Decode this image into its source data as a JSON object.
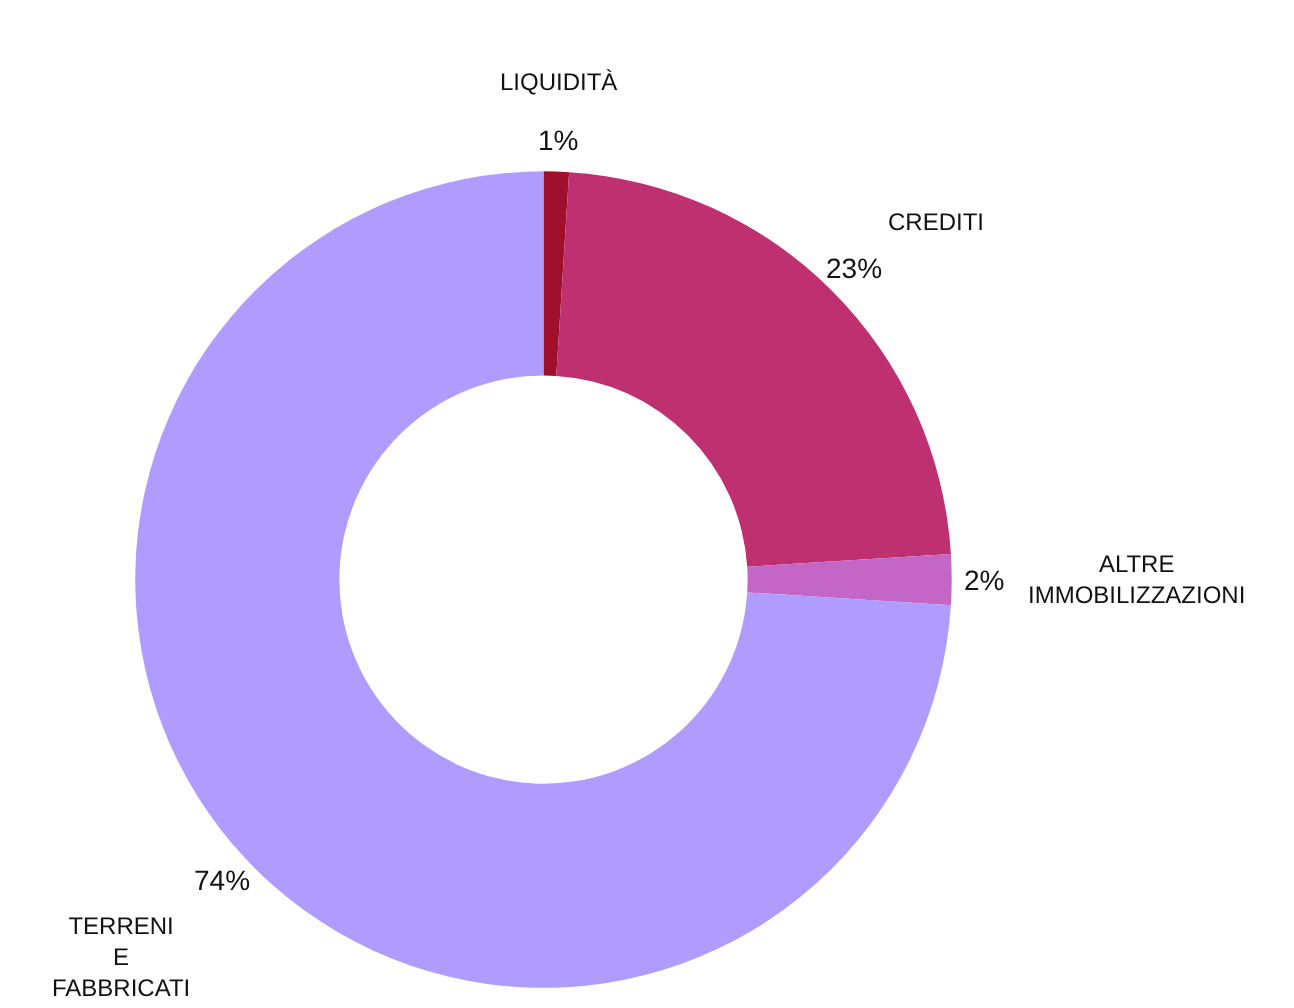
{
  "chart_data": {
    "type": "donut",
    "categories": [
      "LIQUIDITÀ",
      "CREDITI",
      "ALTRE IMMOBILIZZAZIONI",
      "TERRENI E FABBRICATI"
    ],
    "values": [
      1,
      23,
      2,
      74
    ],
    "value_labels": [
      "1%",
      "23%",
      "2%",
      "74%"
    ],
    "colors": [
      "#a0102c",
      "#bf3070",
      "#c466c6",
      "#b09cff"
    ],
    "legend": false
  }
}
